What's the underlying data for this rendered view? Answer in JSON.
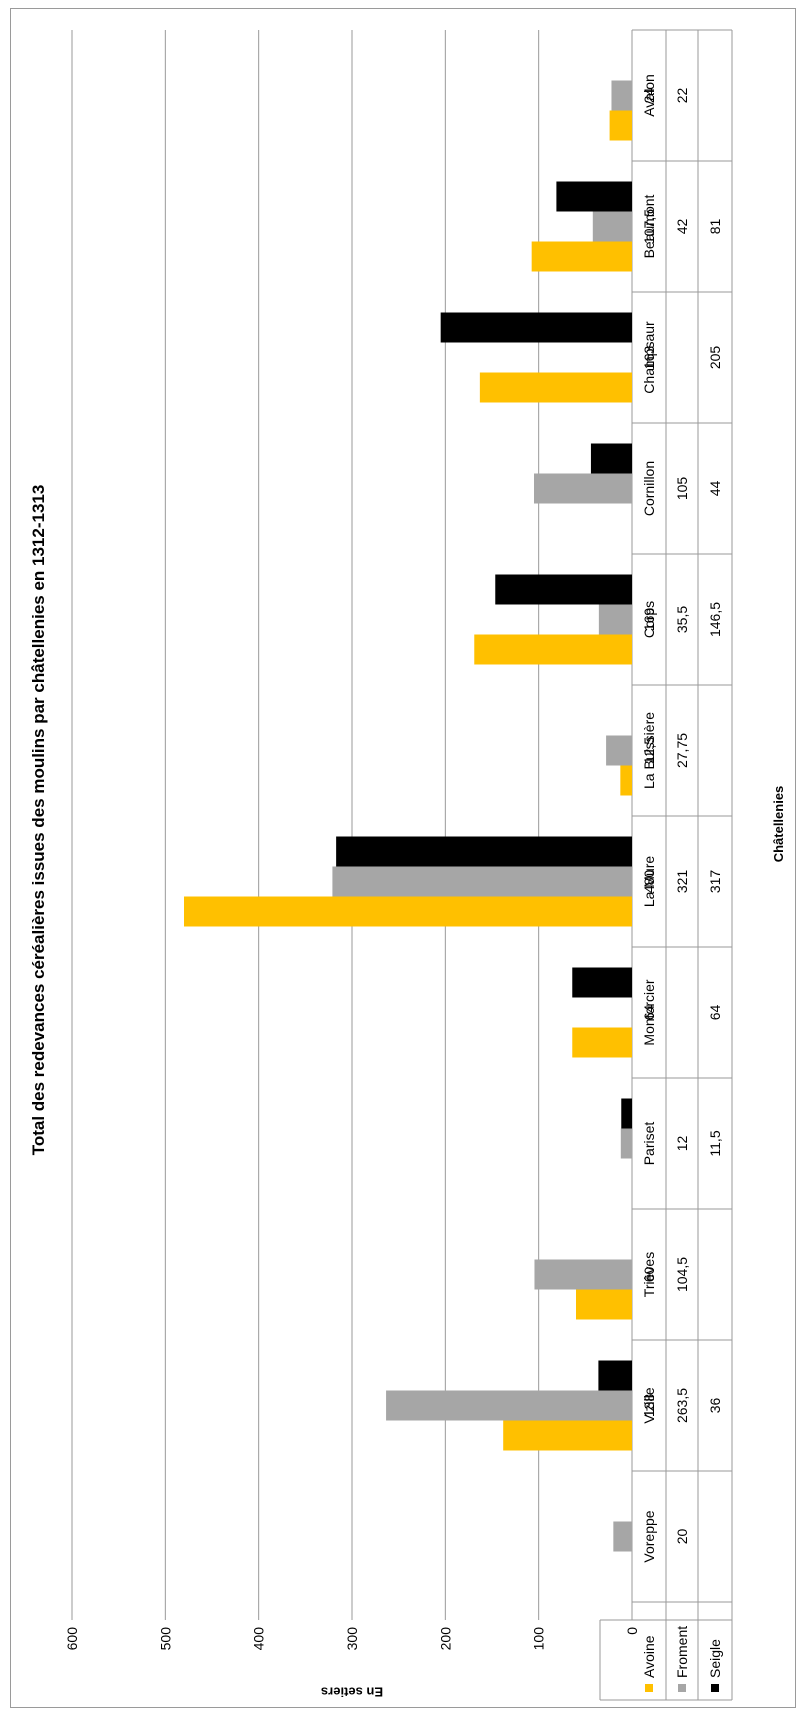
{
  "chart_data": {
    "type": "bar",
    "title": "Total des redevances céréalières issues des moulins par châtellenies en 1312-1313",
    "xlabel": "Châtellenies",
    "ylabel": "En setiers",
    "ylim": [
      0,
      600
    ],
    "yticks": [
      "0",
      "100",
      "200",
      "300",
      "400",
      "500",
      "600"
    ],
    "grid": true,
    "legend_position": "data-table",
    "categories": [
      "Avalon",
      "Beaumont",
      "Champsaur",
      "Cornillon",
      "Corps",
      "La Buissière",
      "La Mure",
      "Montorcier",
      "Pariset",
      "Trièves",
      "Vizille",
      "Voreppe"
    ],
    "series": [
      {
        "name": "Avoine",
        "color": "#FFC000",
        "values": [
          24,
          107.5,
          163,
          null,
          169,
          12.5,
          480,
          64,
          null,
          60,
          138,
          null
        ],
        "labels": [
          "24",
          "107,5",
          "163",
          "",
          "169",
          "12,5",
          "480",
          "64",
          "",
          "60",
          "138",
          ""
        ]
      },
      {
        "name": "Froment",
        "color": "#A6A6A6",
        "values": [
          22,
          42,
          null,
          105,
          35.5,
          27.75,
          321,
          null,
          12,
          104.5,
          263.5,
          20
        ],
        "labels": [
          "22",
          "42",
          "",
          "105",
          "35,5",
          "27,75",
          "321",
          "",
          "12",
          "104,5",
          "263,5",
          "20"
        ]
      },
      {
        "name": "Seigle",
        "color": "#000000",
        "values": [
          null,
          81,
          205,
          44,
          146.5,
          null,
          317,
          64,
          11.5,
          null,
          36,
          null
        ],
        "labels": [
          "",
          "81",
          "205",
          "44",
          "146,5",
          "",
          "317",
          "64",
          "11,5",
          "",
          "36",
          ""
        ]
      }
    ]
  },
  "colors": {
    "gridline": "#999999",
    "table_border": "#9a9a9a"
  }
}
